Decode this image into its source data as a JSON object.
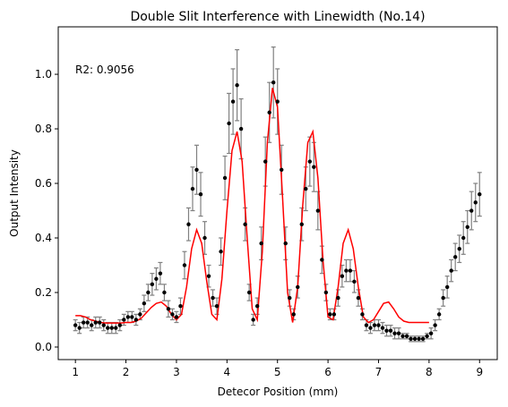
{
  "chart_data": {
    "type": "scatter",
    "title": "Double Slit Interference with Linewidth (No.14)",
    "xlabel": "Detecor Position (mm)",
    "ylabel": "Output Intensity",
    "annotation": "R2: 0.9056",
    "xlim": [
      0.66,
      9.35
    ],
    "ylim": [
      -0.046,
      1.174
    ],
    "xticks": [
      1,
      2,
      3,
      4,
      5,
      6,
      7,
      8,
      9
    ],
    "yticks": [
      {
        "value": 0,
        "label": "0.0"
      },
      0.2,
      0.4,
      0.6,
      0.8,
      {
        "value": 1,
        "label": "1.0"
      }
    ],
    "points": {
      "color": "#000000",
      "error_color": "#808080",
      "x": [
        1.0,
        1.08,
        1.16,
        1.24,
        1.32,
        1.4,
        1.48,
        1.56,
        1.64,
        1.72,
        1.8,
        1.88,
        1.96,
        2.04,
        2.12,
        2.2,
        2.28,
        2.36,
        2.44,
        2.52,
        2.6,
        2.68,
        2.76,
        2.84,
        2.92,
        3.0,
        3.08,
        3.16,
        3.24,
        3.32,
        3.4,
        3.48,
        3.56,
        3.64,
        3.72,
        3.8,
        3.88,
        3.96,
        4.04,
        4.12,
        4.2,
        4.28,
        4.36,
        4.44,
        4.52,
        4.6,
        4.68,
        4.76,
        4.84,
        4.92,
        5.0,
        5.08,
        5.16,
        5.24,
        5.32,
        5.4,
        5.48,
        5.56,
        5.64,
        5.72,
        5.8,
        5.88,
        5.96,
        6.04,
        6.12,
        6.2,
        6.28,
        6.36,
        6.44,
        6.52,
        6.6,
        6.68,
        6.76,
        6.84,
        6.92,
        7.0,
        7.08,
        7.16,
        7.24,
        7.32,
        7.4,
        7.48,
        7.56,
        7.64,
        7.72,
        7.8,
        7.88,
        7.96,
        8.04,
        8.12,
        8.2,
        8.28,
        8.36,
        8.44,
        8.52,
        8.6,
        8.68,
        8.76,
        8.84,
        8.92,
        9.0
      ],
      "values": [
        0.08,
        0.07,
        0.09,
        0.09,
        0.08,
        0.09,
        0.09,
        0.08,
        0.07,
        0.07,
        0.07,
        0.08,
        0.1,
        0.11,
        0.11,
        0.1,
        0.12,
        0.16,
        0.2,
        0.23,
        0.25,
        0.27,
        0.2,
        0.14,
        0.12,
        0.11,
        0.15,
        0.3,
        0.45,
        0.58,
        0.65,
        0.56,
        0.4,
        0.26,
        0.18,
        0.15,
        0.35,
        0.62,
        0.82,
        0.9,
        0.96,
        0.8,
        0.45,
        0.2,
        0.1,
        0.15,
        0.38,
        0.68,
        0.86,
        0.97,
        0.9,
        0.65,
        0.38,
        0.18,
        0.12,
        0.22,
        0.45,
        0.58,
        0.68,
        0.66,
        0.5,
        0.32,
        0.2,
        0.12,
        0.12,
        0.18,
        0.26,
        0.28,
        0.28,
        0.24,
        0.18,
        0.12,
        0.08,
        0.07,
        0.08,
        0.08,
        0.07,
        0.06,
        0.06,
        0.05,
        0.05,
        0.04,
        0.04,
        0.03,
        0.03,
        0.03,
        0.03,
        0.04,
        0.05,
        0.08,
        0.12,
        0.18,
        0.22,
        0.28,
        0.33,
        0.36,
        0.4,
        0.44,
        0.5,
        0.53,
        0.56
      ],
      "errors": [
        0.02,
        0.02,
        0.02,
        0.02,
        0.02,
        0.02,
        0.02,
        0.02,
        0.02,
        0.02,
        0.02,
        0.02,
        0.02,
        0.02,
        0.02,
        0.02,
        0.02,
        0.03,
        0.03,
        0.04,
        0.04,
        0.04,
        0.03,
        0.03,
        0.02,
        0.02,
        0.03,
        0.05,
        0.06,
        0.08,
        0.09,
        0.08,
        0.06,
        0.04,
        0.03,
        0.03,
        0.05,
        0.08,
        0.11,
        0.12,
        0.13,
        0.11,
        0.06,
        0.03,
        0.02,
        0.03,
        0.06,
        0.09,
        0.11,
        0.13,
        0.12,
        0.09,
        0.06,
        0.03,
        0.02,
        0.04,
        0.06,
        0.08,
        0.09,
        0.09,
        0.07,
        0.05,
        0.03,
        0.02,
        0.02,
        0.03,
        0.04,
        0.04,
        0.04,
        0.04,
        0.03,
        0.02,
        0.02,
        0.02,
        0.02,
        0.02,
        0.02,
        0.02,
        0.02,
        0.02,
        0.02,
        0.01,
        0.01,
        0.01,
        0.01,
        0.01,
        0.01,
        0.01,
        0.02,
        0.02,
        0.02,
        0.03,
        0.04,
        0.04,
        0.05,
        0.05,
        0.06,
        0.06,
        0.07,
        0.07,
        0.08
      ]
    },
    "fit": {
      "color": "#ff0000",
      "x": [
        1.0,
        1.1,
        1.2,
        1.3,
        1.4,
        1.5,
        1.6,
        1.7,
        1.8,
        1.9,
        2.0,
        2.1,
        2.2,
        2.3,
        2.4,
        2.5,
        2.6,
        2.7,
        2.8,
        2.9,
        3.0,
        3.1,
        3.2,
        3.3,
        3.4,
        3.5,
        3.6,
        3.7,
        3.8,
        3.9,
        4.0,
        4.1,
        4.2,
        4.3,
        4.4,
        4.5,
        4.6,
        4.7,
        4.8,
        4.9,
        5.0,
        5.1,
        5.2,
        5.3,
        5.4,
        5.5,
        5.6,
        5.7,
        5.8,
        5.9,
        6.0,
        6.1,
        6.2,
        6.3,
        6.4,
        6.5,
        6.6,
        6.7,
        6.8,
        6.9,
        7.0,
        7.1,
        7.2,
        7.3,
        7.4,
        7.5,
        7.6,
        7.7,
        7.8,
        7.9,
        8.0
      ],
      "values": [
        0.115,
        0.115,
        0.11,
        0.1,
        0.095,
        0.09,
        0.088,
        0.088,
        0.088,
        0.088,
        0.09,
        0.09,
        0.095,
        0.105,
        0.125,
        0.145,
        0.16,
        0.165,
        0.15,
        0.12,
        0.1,
        0.12,
        0.22,
        0.36,
        0.43,
        0.38,
        0.24,
        0.12,
        0.1,
        0.25,
        0.5,
        0.72,
        0.79,
        0.68,
        0.4,
        0.14,
        0.1,
        0.35,
        0.75,
        0.95,
        0.88,
        0.55,
        0.2,
        0.09,
        0.22,
        0.52,
        0.75,
        0.79,
        0.62,
        0.32,
        0.11,
        0.1,
        0.22,
        0.38,
        0.43,
        0.36,
        0.22,
        0.11,
        0.09,
        0.1,
        0.13,
        0.16,
        0.165,
        0.14,
        0.11,
        0.095,
        0.09,
        0.09,
        0.09,
        0.09,
        0.09
      ]
    }
  }
}
